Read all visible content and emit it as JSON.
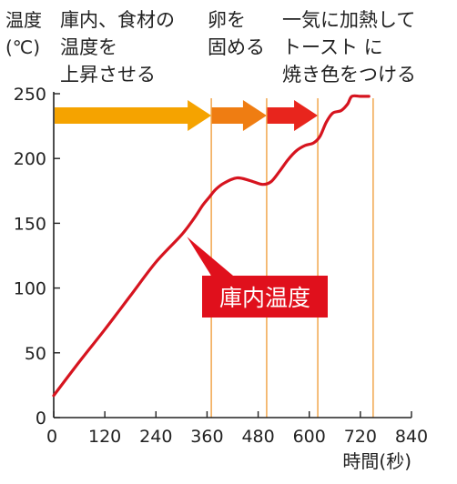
{
  "chart_data": {
    "type": "line",
    "title": "",
    "ylabel_lines": [
      "温度",
      "(℃)"
    ],
    "xlabel": "時間(秒)",
    "xlim": [
      0,
      840
    ],
    "ylim": [
      0,
      250
    ],
    "x_ticks": [
      0,
      120,
      240,
      360,
      480,
      600,
      720,
      840
    ],
    "y_ticks": [
      0,
      50,
      100,
      150,
      200,
      250
    ],
    "grid": false,
    "stages": [
      {
        "lines": [
          "庫内、食材の",
          "温度を",
          "上昇させる"
        ],
        "start": 0,
        "end": 370,
        "color": "#f5a300"
      },
      {
        "lines": [
          "卵を",
          "固める"
        ],
        "start": 370,
        "end": 500,
        "color": "#ef7d12"
      },
      {
        "lines": [
          "一気に加熱して",
          "トースト に",
          "焼き色をつける"
        ],
        "start": 500,
        "end": 620,
        "color": "#e8251d"
      }
    ],
    "stage_boundaries": [
      370,
      500,
      620,
      750
    ],
    "series": [
      {
        "name": "庫内温度",
        "color": "#d6141f",
        "points": [
          [
            0,
            17
          ],
          [
            60,
            43
          ],
          [
            120,
            68
          ],
          [
            180,
            94
          ],
          [
            240,
            120
          ],
          [
            300,
            141
          ],
          [
            330,
            154
          ],
          [
            350,
            164
          ],
          [
            365,
            170
          ],
          [
            380,
            176
          ],
          [
            400,
            181
          ],
          [
            430,
            185
          ],
          [
            460,
            183
          ],
          [
            490,
            180
          ],
          [
            510,
            182
          ],
          [
            530,
            190
          ],
          [
            550,
            199
          ],
          [
            570,
            206
          ],
          [
            590,
            210
          ],
          [
            610,
            212
          ],
          [
            625,
            217
          ],
          [
            640,
            228
          ],
          [
            655,
            235
          ],
          [
            675,
            237
          ],
          [
            690,
            242
          ],
          [
            700,
            248
          ],
          [
            720,
            248
          ],
          [
            740,
            248
          ]
        ]
      }
    ]
  }
}
